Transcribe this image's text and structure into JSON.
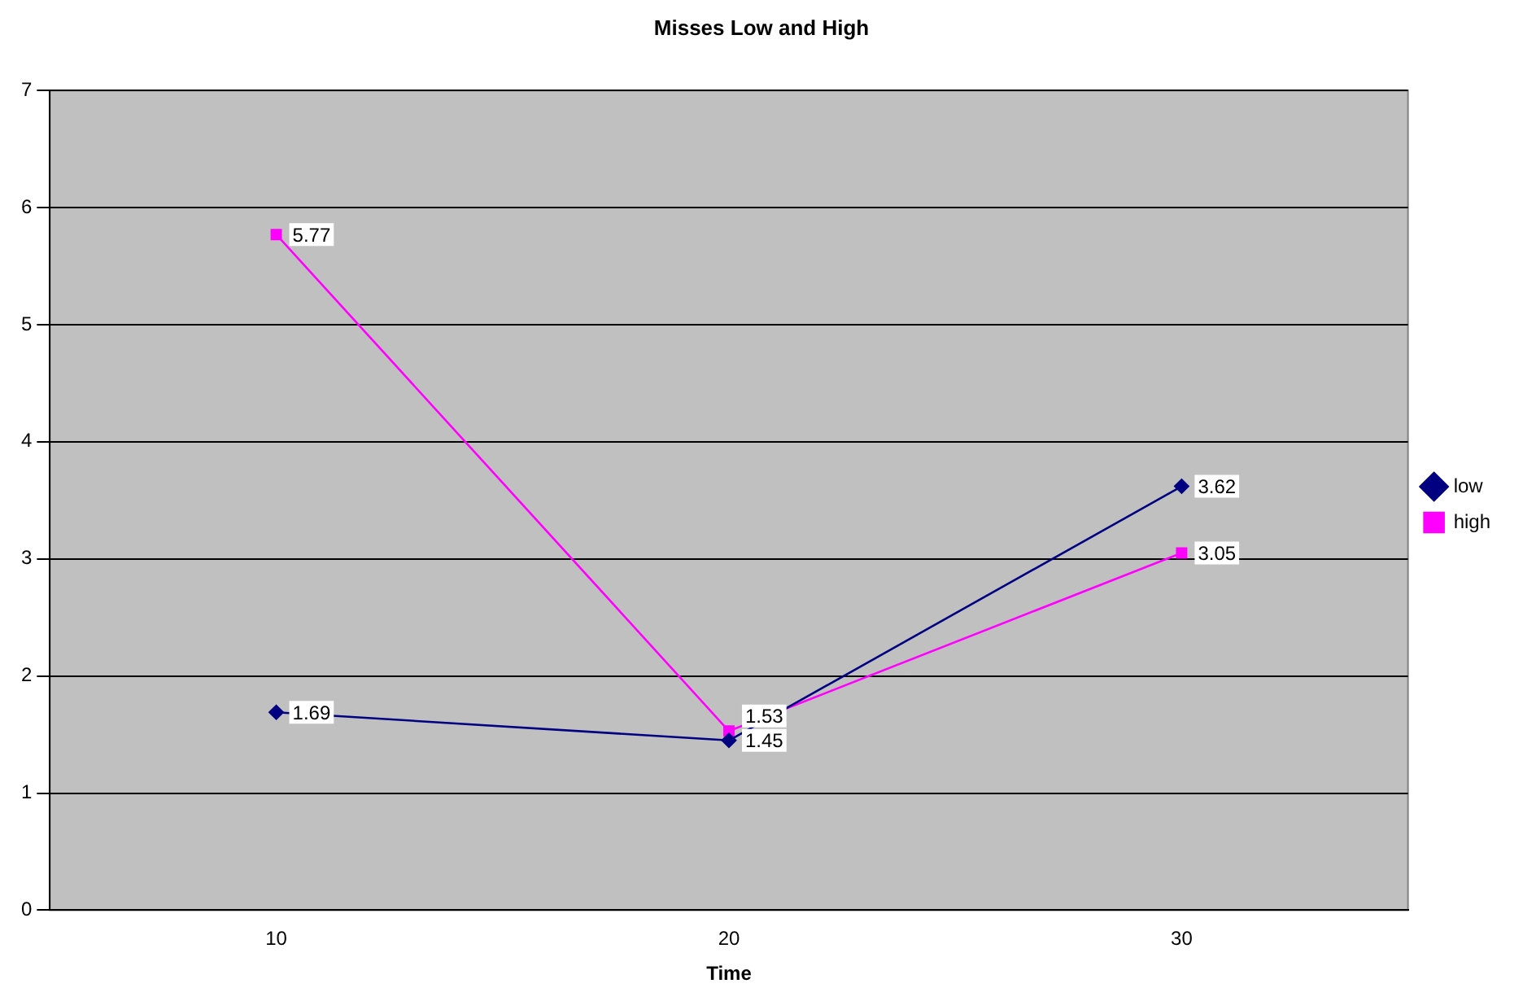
{
  "chart_data": {
    "type": "line",
    "title": "Misses Low and High",
    "xlabel": "Time",
    "categories": [
      "10",
      "20",
      "30"
    ],
    "series": [
      {
        "name": "low",
        "color": "#000080",
        "values": [
          1.69,
          1.45,
          3.62
        ],
        "marker": "diamond"
      },
      {
        "name": "high",
        "color": "#ff00ff",
        "values": [
          5.77,
          1.53,
          3.05
        ],
        "marker": "square"
      }
    ],
    "ylim": [
      0,
      7
    ],
    "yticks": [
      0,
      1,
      2,
      3,
      4,
      5,
      6,
      7
    ],
    "grid": "y",
    "legend": "right",
    "data_labels": true,
    "line_style": "solid"
  }
}
